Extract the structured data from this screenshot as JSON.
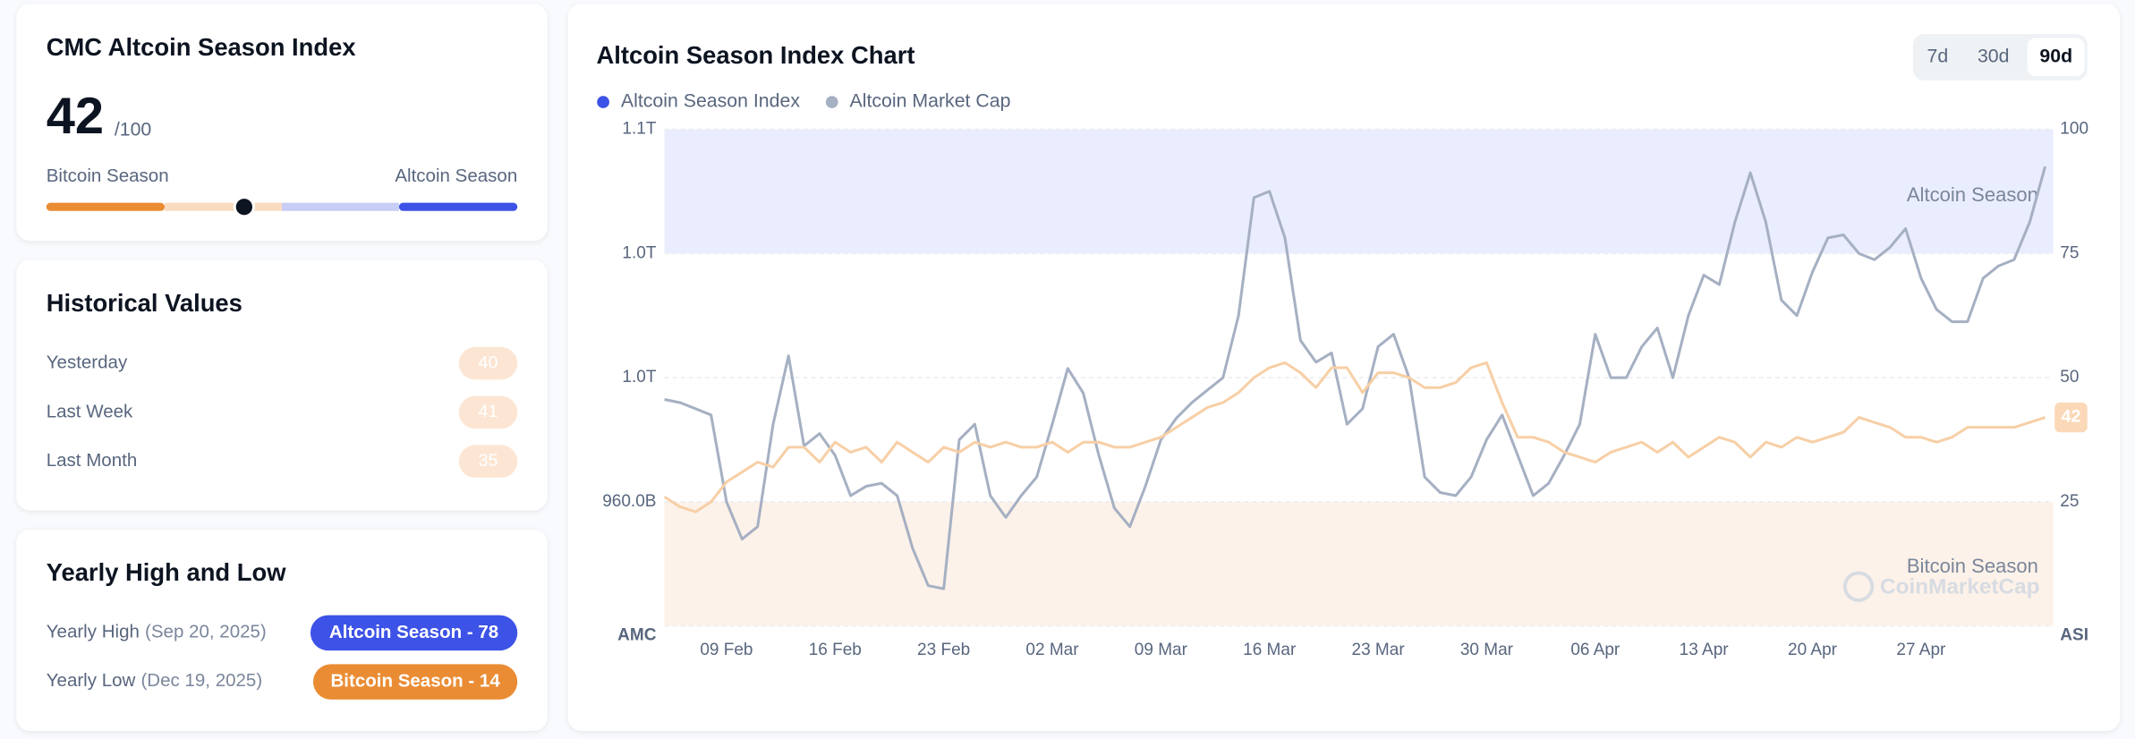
{
  "index": {
    "title": "CMC Altcoin Season Index",
    "value": 42,
    "out_of": {
      "value": 100,
      "label": "/100"
    },
    "left_label": "Bitcoin Season",
    "right_label": "Altcoin Season"
  },
  "historical": {
    "title": "Historical Values",
    "rows": [
      {
        "label": "Yesterday",
        "value": 40
      },
      {
        "label": "Last Week",
        "value": 41
      },
      {
        "label": "Last Month",
        "value": 35
      }
    ]
  },
  "yearly": {
    "title": "Yearly High and Low",
    "rows": [
      {
        "label": "Yearly High",
        "date": "(Sep 20, 2025)",
        "badge": "Altcoin Season - 78",
        "color": "#3d52e6"
      },
      {
        "label": "Yearly Low",
        "date": "(Dec 19, 2025)",
        "badge": "Bitcoin Season - 14",
        "color": "#ea8c34"
      }
    ]
  },
  "chart_data": {
    "type": "line",
    "title": "Altcoin Season Index Chart",
    "ranges": [
      {
        "label": "7d",
        "active": false
      },
      {
        "label": "30d",
        "active": false
      },
      {
        "label": "90d",
        "active": true
      }
    ],
    "y_label": "AMC",
    "y2_label": "ASI",
    "watermark": "CoinMarketCap",
    "categories": [
      null,
      null,
      null,
      null,
      "09 Feb",
      null,
      null,
      null,
      null,
      null,
      null,
      "16 Feb",
      null,
      null,
      null,
      null,
      null,
      null,
      "23 Feb",
      null,
      null,
      null,
      null,
      null,
      null,
      "02 Mar",
      null,
      null,
      null,
      null,
      null,
      null,
      "09 Mar",
      null,
      null,
      null,
      null,
      null,
      null,
      "16 Mar",
      null,
      null,
      null,
      null,
      null,
      null,
      "23 Mar",
      null,
      null,
      null,
      null,
      null,
      null,
      "30 Mar",
      null,
      null,
      null,
      null,
      null,
      null,
      "06 Apr",
      null,
      null,
      null,
      null,
      null,
      null,
      "13 Apr",
      null,
      null,
      null,
      null,
      null,
      null,
      "20 Apr",
      null,
      null,
      null,
      null,
      null,
      null,
      "27 Apr",
      null,
      null,
      null,
      null,
      null,
      null,
      null,
      null
    ],
    "ylim": [
      920,
      1080
    ],
    "yticks": [
      {
        "value": 960,
        "label": "960.0B"
      },
      {
        "value": 1000,
        "label": "1.0T"
      },
      {
        "value": 1040,
        "label": "1.0T"
      },
      {
        "value": 1080,
        "label": "1.1T"
      }
    ],
    "y2lim": [
      0,
      100
    ],
    "y2ticks": [
      25,
      50,
      75,
      100
    ],
    "grid": true,
    "bands": [
      {
        "label": "Altcoin Season",
        "from": 75,
        "to": 100,
        "color": "#eaedfd"
      },
      {
        "label": "Bitcoin Season",
        "from": 0,
        "to": 25,
        "color": "#fdf2e9"
      }
    ],
    "series": [
      {
        "name": "Altcoin Season Index",
        "color": "#3d52e6",
        "line_color": "#f7cfa6",
        "axis": "y2",
        "values": [
          26,
          24,
          23,
          25,
          29,
          31,
          33,
          32,
          36,
          36,
          33,
          37,
          35,
          36,
          33,
          37,
          35,
          33,
          36,
          35,
          37,
          36,
          37,
          36,
          36,
          37,
          35,
          37,
          37,
          36,
          36,
          37,
          38,
          40,
          42,
          44,
          45,
          47,
          50,
          52,
          53,
          51,
          48,
          52,
          52,
          47,
          51,
          51,
          50,
          48,
          48,
          49,
          52,
          53,
          45,
          38,
          38,
          37,
          35,
          34,
          33,
          35,
          36,
          37,
          35,
          37,
          34,
          36,
          38,
          37,
          34,
          37,
          36,
          38,
          37,
          38,
          39,
          42,
          41,
          40,
          38,
          38,
          37,
          38,
          40,
          40,
          40,
          40,
          41,
          42
        ]
      },
      {
        "name": "Altcoin Market Cap",
        "color": "#a6b0c3",
        "line_color": "#a6b0c3",
        "axis": "y",
        "values": [
          993,
          992,
          990,
          988,
          960,
          948,
          952,
          985,
          1007,
          978,
          982,
          975,
          962,
          965,
          966,
          962,
          945,
          933,
          932,
          980,
          985,
          962,
          955,
          962,
          968,
          985,
          1003,
          995,
          975,
          958,
          952,
          965,
          980,
          987,
          992,
          996,
          1000,
          1020,
          1058,
          1060,
          1045,
          1012,
          1005,
          1008,
          985,
          990,
          1010,
          1014,
          1000,
          968,
          963,
          962,
          968,
          980,
          988,
          975,
          962,
          966,
          975,
          985,
          1014,
          1000,
          1000,
          1010,
          1016,
          1000,
          1020,
          1033,
          1030,
          1050,
          1066,
          1050,
          1025,
          1020,
          1034,
          1045,
          1046,
          1040,
          1038,
          1042,
          1048,
          1032,
          1022,
          1018,
          1018,
          1032,
          1036,
          1038,
          1050,
          1068
        ]
      }
    ]
  }
}
